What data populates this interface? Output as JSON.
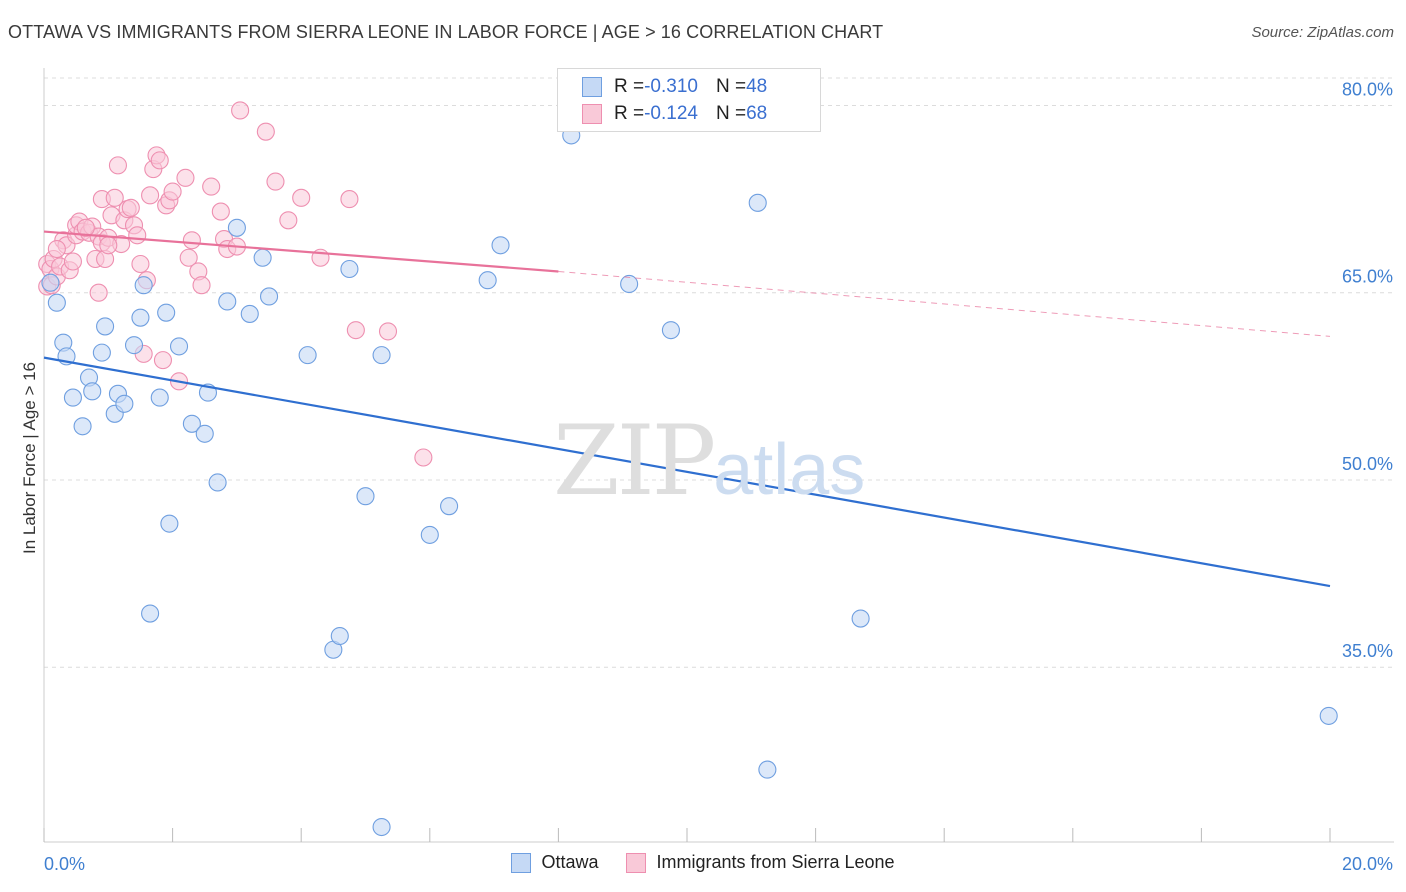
{
  "title": "OTTAWA VS IMMIGRANTS FROM SIERRA LEONE IN LABOR FORCE | AGE > 16 CORRELATION CHART",
  "source": "Source: ZipAtlas.com",
  "watermark": {
    "zip": "ZIP",
    "atlas": "atlas"
  },
  "legend_top": [
    {
      "r_label": "R = ",
      "r_value": "-0.310",
      "n_label": "N = ",
      "n_value": "48"
    },
    {
      "r_label": "R = ",
      "r_value": "-0.124",
      "n_label": "N = ",
      "n_value": "68"
    }
  ],
  "legend_bottom": [
    "Ottawa",
    "Immigrants from Sierra Leone"
  ],
  "colors": {
    "ottawa_fill": "#c5d9f5",
    "ottawa_stroke": "#6f9fe0",
    "ottawa_line": "#2f6fd0",
    "sl_fill": "#f9c9d8",
    "sl_stroke": "#ee8fb0",
    "sl_line": "#e8729a",
    "tick_label": "#3f7fd0",
    "grid": "#dcdcdc"
  },
  "chart_data": {
    "type": "scatter",
    "title": "OTTAWA VS IMMIGRANTS FROM SIERRA LEONE IN LABOR FORCE | AGE > 16 CORRELATION CHART",
    "xlabel": "",
    "ylabel": "In Labor Force | Age > 16",
    "xlim": [
      0,
      20
    ],
    "ylim": [
      21,
      83
    ],
    "x_tick_labels": [
      "0.0%",
      "20.0%"
    ],
    "y_ticks": [
      35,
      50,
      65,
      80
    ],
    "y_tick_labels": [
      "35.0%",
      "50.0%",
      "65.0%",
      "80.0%"
    ],
    "grid": true,
    "legend_position": "top-center",
    "series": [
      {
        "name": "Ottawa",
        "R": -0.31,
        "N": 48,
        "trend": {
          "x": [
            0,
            20
          ],
          "y": [
            59.8,
            41.5
          ]
        },
        "points": [
          [
            0.1,
            65.8
          ],
          [
            0.2,
            64.2
          ],
          [
            0.3,
            61
          ],
          [
            0.35,
            59.9
          ],
          [
            0.45,
            56.6
          ],
          [
            0.6,
            54.3
          ],
          [
            0.7,
            58.2
          ],
          [
            0.75,
            57.1
          ],
          [
            0.9,
            60.2
          ],
          [
            0.95,
            62.3
          ],
          [
            1.1,
            55.3
          ],
          [
            1.15,
            56.9
          ],
          [
            1.25,
            56.1
          ],
          [
            1.4,
            60.8
          ],
          [
            1.5,
            63
          ],
          [
            1.55,
            65.6
          ],
          [
            1.65,
            39.3
          ],
          [
            1.8,
            56.6
          ],
          [
            1.9,
            63.4
          ],
          [
            1.95,
            46.5
          ],
          [
            2.1,
            60.7
          ],
          [
            2.3,
            54.5
          ],
          [
            2.5,
            53.7
          ],
          [
            2.55,
            57
          ],
          [
            2.7,
            49.8
          ],
          [
            2.85,
            64.3
          ],
          [
            3.0,
            70.2
          ],
          [
            3.2,
            63.3
          ],
          [
            3.4,
            67.8
          ],
          [
            3.5,
            64.7
          ],
          [
            4.1,
            60
          ],
          [
            4.5,
            36.4
          ],
          [
            4.6,
            37.5
          ],
          [
            4.75,
            66.9
          ],
          [
            5.0,
            48.7
          ],
          [
            5.25,
            60
          ],
          [
            5.25,
            22.2
          ],
          [
            6.0,
            45.6
          ],
          [
            6.3,
            47.9
          ],
          [
            6.9,
            66
          ],
          [
            7.1,
            68.8
          ],
          [
            8.2,
            77.6
          ],
          [
            9.1,
            65.7
          ],
          [
            9.75,
            62
          ],
          [
            11.1,
            72.2
          ],
          [
            11.25,
            26.8
          ],
          [
            12.7,
            38.9
          ],
          [
            19.98,
            31.1
          ]
        ]
      },
      {
        "name": "Immigrants from Sierra Leone",
        "R": -0.124,
        "N": 68,
        "trend_solid": {
          "x": [
            0,
            8
          ],
          "y": [
            69.9,
            66.7
          ]
        },
        "trend_dashed": {
          "x": [
            8,
            20
          ],
          "y": [
            66.7,
            61.5
          ]
        },
        "points": [
          [
            0.05,
            65.5
          ],
          [
            0.05,
            67.3
          ],
          [
            0.1,
            66.9
          ],
          [
            0.12,
            65.6
          ],
          [
            0.15,
            67.7
          ],
          [
            0.2,
            66.3
          ],
          [
            0.25,
            67.1
          ],
          [
            0.3,
            69.2
          ],
          [
            0.35,
            68.8
          ],
          [
            0.4,
            66.8
          ],
          [
            0.45,
            67.5
          ],
          [
            0.5,
            69.6
          ],
          [
            0.5,
            70.4
          ],
          [
            0.55,
            70.7
          ],
          [
            0.6,
            69.9
          ],
          [
            0.7,
            69.8
          ],
          [
            0.75,
            70.3
          ],
          [
            0.8,
            67.7
          ],
          [
            0.85,
            69.5
          ],
          [
            0.85,
            65
          ],
          [
            0.9,
            69
          ],
          [
            0.9,
            72.5
          ],
          [
            0.95,
            67.7
          ],
          [
            1.0,
            69.4
          ],
          [
            1.05,
            71.2
          ],
          [
            1.1,
            72.6
          ],
          [
            1.15,
            75.2
          ],
          [
            1.2,
            68.9
          ],
          [
            1.25,
            70.8
          ],
          [
            1.3,
            71.7
          ],
          [
            1.35,
            71.8
          ],
          [
            1.4,
            70.4
          ],
          [
            1.45,
            69.6
          ],
          [
            1.5,
            67.3
          ],
          [
            1.55,
            60.1
          ],
          [
            1.6,
            66
          ],
          [
            1.65,
            72.8
          ],
          [
            1.7,
            74.9
          ],
          [
            1.75,
            76
          ],
          [
            1.8,
            75.6
          ],
          [
            1.85,
            59.6
          ],
          [
            1.9,
            72
          ],
          [
            1.95,
            72.4
          ],
          [
            2.0,
            73.1
          ],
          [
            2.1,
            57.9
          ],
          [
            2.2,
            74.2
          ],
          [
            2.25,
            67.8
          ],
          [
            2.3,
            69.2
          ],
          [
            2.4,
            66.7
          ],
          [
            2.45,
            65.6
          ],
          [
            2.6,
            73.5
          ],
          [
            2.75,
            71.5
          ],
          [
            2.8,
            69.3
          ],
          [
            2.85,
            68.5
          ],
          [
            3.0,
            68.7
          ],
          [
            3.05,
            79.6
          ],
          [
            3.45,
            77.9
          ],
          [
            3.6,
            73.9
          ],
          [
            3.8,
            70.8
          ],
          [
            4.0,
            72.6
          ],
          [
            4.3,
            67.8
          ],
          [
            4.75,
            72.5
          ],
          [
            4.85,
            62
          ],
          [
            5.35,
            61.9
          ],
          [
            5.9,
            51.8
          ],
          [
            0.2,
            68.5
          ],
          [
            0.65,
            70.2
          ],
          [
            1.0,
            68.8
          ]
        ]
      }
    ]
  }
}
